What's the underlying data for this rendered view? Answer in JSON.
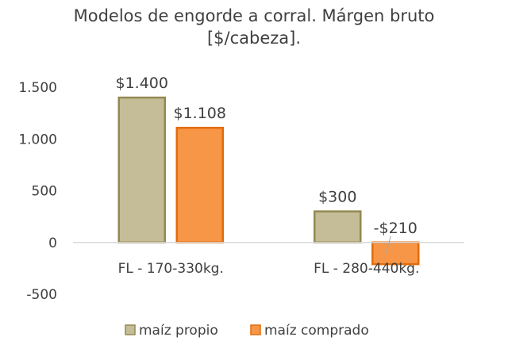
{
  "chart_data": {
    "type": "bar",
    "title": "Modelos de engorde a corral. Márgen bruto [$/cabeza].",
    "title_lines": [
      "Modelos de engorde a corral. Márgen bruto",
      "[$/cabeza]."
    ],
    "categories": [
      "FL - 170-330kg.",
      "FL - 280-440kg."
    ],
    "series": [
      {
        "name": "maíz propio",
        "values": [
          1400,
          300
        ],
        "labels": [
          "$1.400",
          "$300"
        ],
        "color": "#c4bd97",
        "stroke": "#938953"
      },
      {
        "name": "maíz comprado",
        "values": [
          1108,
          -210
        ],
        "labels": [
          "$1.108",
          "-$210"
        ],
        "color": "#f79646",
        "stroke": "#e36c09"
      }
    ],
    "yticks": [
      {
        "value": 1500,
        "label": "1.500"
      },
      {
        "value": 1000,
        "label": "1.000"
      },
      {
        "value": 500,
        "label": "500"
      },
      {
        "value": 0,
        "label": "0"
      },
      {
        "value": -500,
        "label": "-500"
      }
    ],
    "ylim": [
      -500,
      1500
    ],
    "grid": false,
    "legend_position": "bottom"
  }
}
